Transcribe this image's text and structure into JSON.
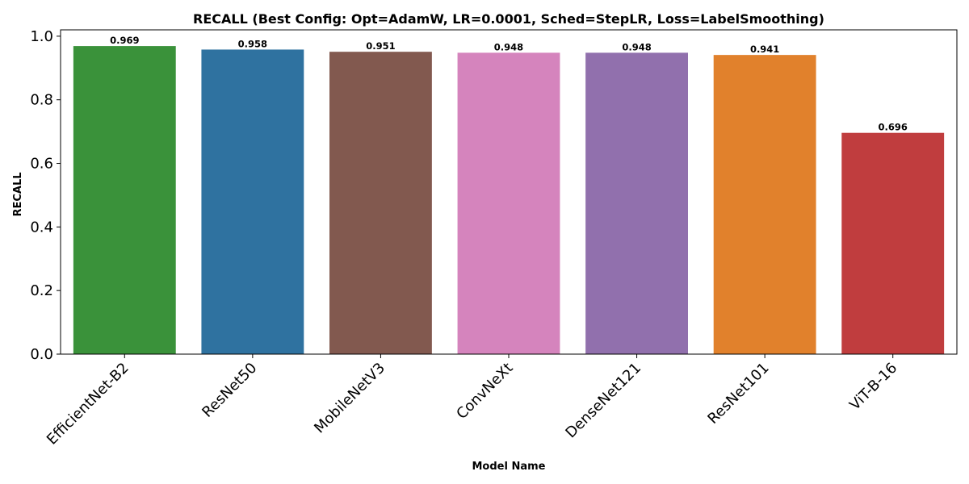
{
  "chart_data": {
    "type": "bar",
    "title": "RECALL (Best Config: Opt=AdamW, LR=0.0001, Sched=StepLR, Loss=LabelSmoothing)",
    "xlabel": "Model Name",
    "ylabel": "RECALL",
    "categories": [
      "EfficientNet-B2",
      "ResNet50",
      "MobileNetV3",
      "ConvNeXt",
      "DenseNet121",
      "ResNet101",
      "ViT-B-16"
    ],
    "values": [
      0.969,
      0.958,
      0.951,
      0.948,
      0.948,
      0.941,
      0.696
    ],
    "value_labels": [
      "0.969",
      "0.958",
      "0.951",
      "0.948",
      "0.948",
      "0.941",
      "0.696"
    ],
    "colors": [
      "#3a923a",
      "#2f72a0",
      "#82594f",
      "#d584bd",
      "#9170ad",
      "#e1812c",
      "#c03d3e"
    ],
    "ylim": [
      0,
      1.0
    ],
    "yticks": [
      0.0,
      0.2,
      0.4,
      0.6,
      0.8,
      1.0
    ],
    "ytick_labels": [
      "0.0",
      "0.2",
      "0.4",
      "0.6",
      "0.8",
      "1.0"
    ],
    "grid": false,
    "legend": "none"
  }
}
